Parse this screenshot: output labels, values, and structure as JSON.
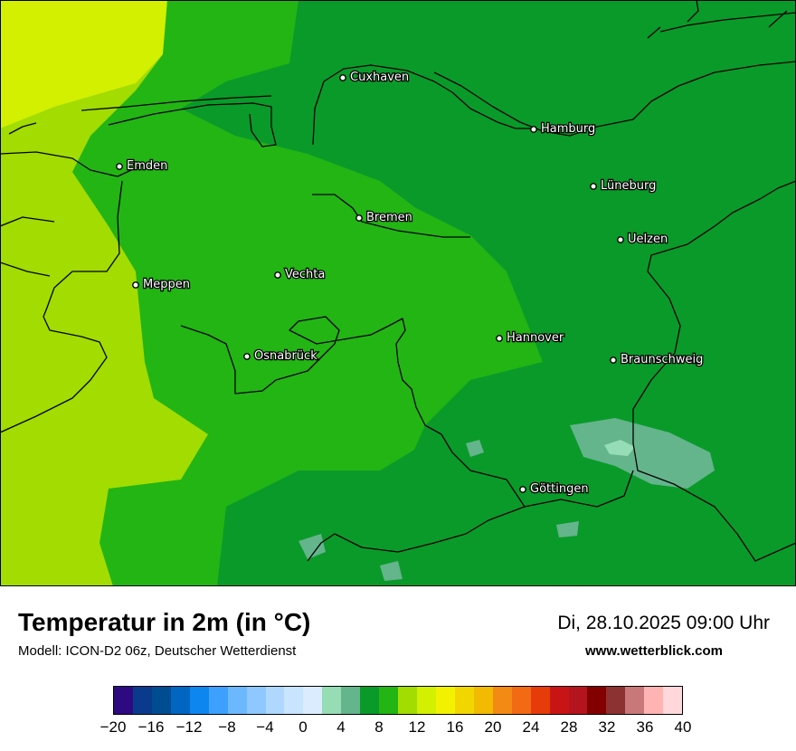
{
  "title": "Temperatur in 2m (in °C)",
  "subtitle": "Modell: ICON-D2 06z, Deutscher Wetterdienst",
  "datetime": "Di, 28.10.2025 09:00 Uhr",
  "website": "www.wetterblick.com",
  "cities": [
    {
      "name": "Cuxhaven",
      "id": "cuxhaven"
    },
    {
      "name": "Hamburg",
      "id": "hamburg"
    },
    {
      "name": "Emden",
      "id": "emden"
    },
    {
      "name": "Lüneburg",
      "id": "lueneburg"
    },
    {
      "name": "Bremen",
      "id": "bremen"
    },
    {
      "name": "Uelzen",
      "id": "uelzen"
    },
    {
      "name": "Vechta",
      "id": "vechta"
    },
    {
      "name": "Meppen",
      "id": "meppen"
    },
    {
      "name": "Hannover",
      "id": "hannover"
    },
    {
      "name": "Osnabrück",
      "id": "osnabrueck"
    },
    {
      "name": "Braunschweig",
      "id": "braunschweig"
    },
    {
      "name": "Göttingen",
      "id": "goettingen"
    }
  ],
  "legend": {
    "colors": [
      "#2d0a80",
      "#0a3a8c",
      "#004c91",
      "#0066c2",
      "#0d86f0",
      "#3da0ff",
      "#6cb8ff",
      "#8ec8ff",
      "#b0d8ff",
      "#c8e4ff",
      "#dcecff",
      "#96dcb4",
      "#64b48c",
      "#0a9a2a",
      "#22b514",
      "#a2dc00",
      "#d2f000",
      "#f2f200",
      "#f2d600",
      "#f2ba00",
      "#f28a14",
      "#f26a14",
      "#e63c0a",
      "#c81414",
      "#b4141e",
      "#820000",
      "#8c3232",
      "#c87878",
      "#ffb4b4",
      "#ffd8dc"
    ],
    "tick_labels": [
      "−20",
      "−16",
      "−12",
      "−8",
      "−4",
      "0",
      "4",
      "8",
      "12",
      "16",
      "20",
      "24",
      "28",
      "32",
      "36",
      "40"
    ]
  }
}
